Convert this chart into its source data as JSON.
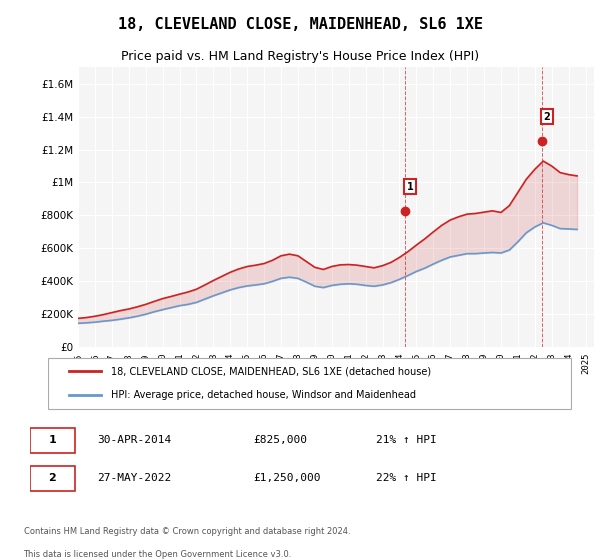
{
  "title": "18, CLEVELAND CLOSE, MAIDENHEAD, SL6 1XE",
  "subtitle": "Price paid vs. HM Land Registry's House Price Index (HPI)",
  "ylabel_ticks": [
    "£0",
    "£200K",
    "£400K",
    "£600K",
    "£800K",
    "£1M",
    "£1.2M",
    "£1.4M",
    "£1.6M"
  ],
  "ytick_values": [
    0,
    200000,
    400000,
    600000,
    800000,
    1000000,
    1200000,
    1400000,
    1600000
  ],
  "ylim": [
    0,
    1700000
  ],
  "xlim_start": 1995.0,
  "xlim_end": 2025.5,
  "years": [
    1995,
    1996,
    1997,
    1998,
    1999,
    2000,
    2001,
    2002,
    2003,
    2004,
    2005,
    2006,
    2007,
    2008,
    2009,
    2010,
    2011,
    2012,
    2013,
    2014,
    2015,
    2016,
    2017,
    2018,
    2019,
    2020,
    2021,
    2022,
    2023,
    2024,
    2025
  ],
  "hpi_line_color": "#6699cc",
  "price_line_color": "#cc2222",
  "legend_box_color": "#dddddd",
  "annotation_box_color": "#ffffff",
  "annotation_box_edge": "#cc2222",
  "point1_date": "30-APR-2014",
  "point1_price": "£825,000",
  "point1_hpi": "21% ↑ HPI",
  "point1_x": 2014.33,
  "point1_y": 825000,
  "point2_date": "27-MAY-2022",
  "point2_price": "£1,250,000",
  "point2_hpi": "22% ↑ HPI",
  "point2_x": 2022.42,
  "point2_y": 1250000,
  "legend1_label": "18, CLEVELAND CLOSE, MAIDENHEAD, SL6 1XE (detached house)",
  "legend2_label": "HPI: Average price, detached house, Windsor and Maidenhead",
  "footer1": "Contains HM Land Registry data © Crown copyright and database right 2024.",
  "footer2": "This data is licensed under the Open Government Licence v3.0.",
  "background_color": "#ffffff",
  "plot_bg_color": "#f5f5f5",
  "grid_color": "#ffffff",
  "hpi_data_x": [
    1995.0,
    1995.5,
    1996.0,
    1996.5,
    1997.0,
    1997.5,
    1998.0,
    1998.5,
    1999.0,
    1999.5,
    2000.0,
    2000.5,
    2001.0,
    2001.5,
    2002.0,
    2002.5,
    2003.0,
    2003.5,
    2004.0,
    2004.5,
    2005.0,
    2005.5,
    2006.0,
    2006.5,
    2007.0,
    2007.5,
    2008.0,
    2008.5,
    2009.0,
    2009.5,
    2010.0,
    2010.5,
    2011.0,
    2011.5,
    2012.0,
    2012.5,
    2013.0,
    2013.5,
    2014.0,
    2014.5,
    2015.0,
    2015.5,
    2016.0,
    2016.5,
    2017.0,
    2017.5,
    2018.0,
    2018.5,
    2019.0,
    2019.5,
    2020.0,
    2020.5,
    2021.0,
    2021.5,
    2022.0,
    2022.5,
    2023.0,
    2023.5,
    2024.0,
    2024.5
  ],
  "hpi_data_y": [
    145000,
    148000,
    152000,
    158000,
    163000,
    170000,
    178000,
    188000,
    200000,
    215000,
    228000,
    240000,
    252000,
    260000,
    272000,
    292000,
    312000,
    330000,
    348000,
    362000,
    372000,
    378000,
    385000,
    400000,
    418000,
    425000,
    418000,
    395000,
    370000,
    362000,
    375000,
    382000,
    385000,
    382000,
    375000,
    370000,
    378000,
    392000,
    412000,
    435000,
    460000,
    480000,
    505000,
    528000,
    548000,
    558000,
    568000,
    568000,
    572000,
    575000,
    572000,
    590000,
    640000,
    695000,
    730000,
    755000,
    740000,
    720000,
    718000,
    715000
  ],
  "price_data_x": [
    1995.0,
    1995.5,
    1996.0,
    1996.5,
    1997.0,
    1997.5,
    1998.0,
    1998.5,
    1999.0,
    1999.5,
    2000.0,
    2000.5,
    2001.0,
    2001.5,
    2002.0,
    2002.5,
    2003.0,
    2003.5,
    2004.0,
    2004.5,
    2005.0,
    2005.5,
    2006.0,
    2006.5,
    2007.0,
    2007.5,
    2008.0,
    2008.5,
    2009.0,
    2009.5,
    2010.0,
    2010.5,
    2011.0,
    2011.5,
    2012.0,
    2012.5,
    2013.0,
    2013.5,
    2014.0,
    2014.5,
    2015.0,
    2015.5,
    2016.0,
    2016.5,
    2017.0,
    2017.5,
    2018.0,
    2018.5,
    2019.0,
    2019.5,
    2020.0,
    2020.5,
    2021.0,
    2021.5,
    2022.0,
    2022.5,
    2023.0,
    2023.5,
    2024.0,
    2024.5
  ],
  "price_data_y": [
    175000,
    180000,
    188000,
    198000,
    210000,
    222000,
    232000,
    245000,
    260000,
    278000,
    295000,
    308000,
    322000,
    335000,
    352000,
    378000,
    405000,
    430000,
    455000,
    475000,
    490000,
    498000,
    508000,
    528000,
    555000,
    565000,
    555000,
    520000,
    485000,
    472000,
    490000,
    500000,
    502000,
    498000,
    490000,
    482000,
    495000,
    515000,
    545000,
    580000,
    620000,
    658000,
    700000,
    740000,
    772000,
    792000,
    808000,
    812000,
    820000,
    828000,
    818000,
    860000,
    940000,
    1020000,
    1080000,
    1130000,
    1100000,
    1060000,
    1048000,
    1040000
  ]
}
